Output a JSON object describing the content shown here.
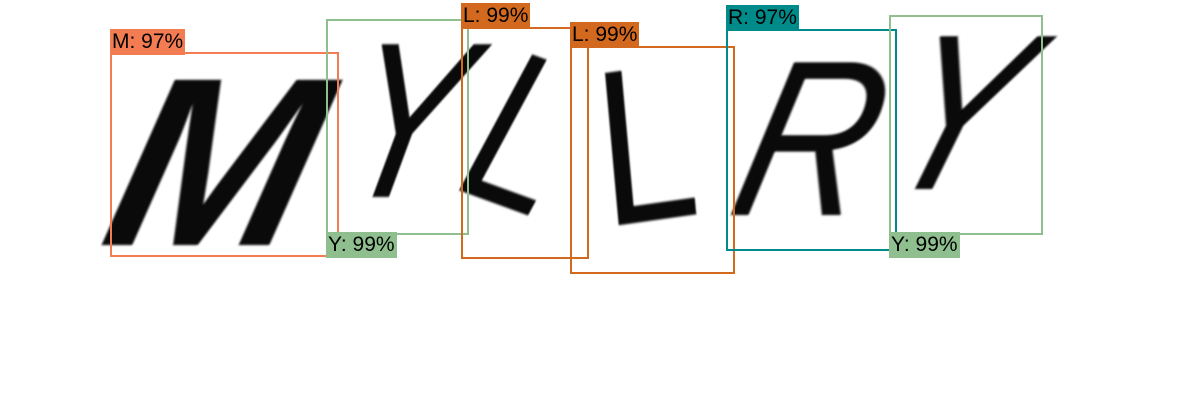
{
  "captcha_glyphs": [
    {
      "id": "glyph-m",
      "char": "M"
    },
    {
      "id": "glyph-y1",
      "char": "Y"
    },
    {
      "id": "glyph-l1",
      "char": "L"
    },
    {
      "id": "glyph-l2",
      "char": "L"
    },
    {
      "id": "glyph-r",
      "char": "R"
    },
    {
      "id": "glyph-y2",
      "char": "Y"
    }
  ],
  "detections": [
    {
      "id": "m",
      "label": "M: 97%",
      "color": "#f47c52"
    },
    {
      "id": "y1",
      "label": "Y: 99%",
      "color": "#8fbf8f"
    },
    {
      "id": "l1",
      "label": "L: 99%",
      "color": "#d2691e"
    },
    {
      "id": "l2",
      "label": "L: 99%",
      "color": "#d2691e"
    },
    {
      "id": "r",
      "label": "R: 97%",
      "color": "#008b8b"
    },
    {
      "id": "y2",
      "label": "Y: 99%",
      "color": "#8fbf8f"
    }
  ]
}
